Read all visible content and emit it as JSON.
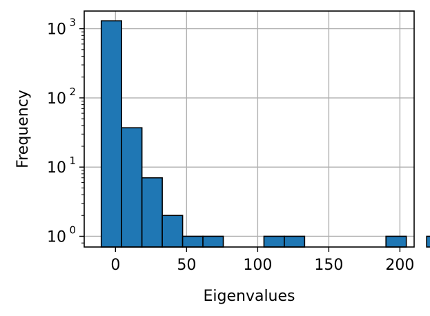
{
  "chart_data": {
    "type": "bar",
    "subtype": "histogram",
    "xlabel": "Eigenvalues",
    "ylabel": "Frequency",
    "y_scale": "log",
    "xlim": [
      -22,
      210
    ],
    "ylim": [
      0.7,
      1800
    ],
    "grid": true,
    "bar_color": "#1f77b4",
    "edge_color": "#000000",
    "grid_color": "#b0b0b0",
    "bin_start": -10,
    "bin_width": 14.3,
    "counts": [
      1300,
      37,
      7,
      2,
      1,
      1,
      0,
      0,
      1,
      1,
      0,
      0,
      0,
      0,
      1,
      0,
      1
    ],
    "x_ticks": [
      {
        "value": 0,
        "label": "0"
      },
      {
        "value": 50,
        "label": "50"
      },
      {
        "value": 100,
        "label": "100"
      },
      {
        "value": 150,
        "label": "150"
      },
      {
        "value": 200,
        "label": "200"
      }
    ],
    "y_ticks": [
      {
        "value": 1,
        "base": "10",
        "exp": "0"
      },
      {
        "value": 10,
        "base": "10",
        "exp": "1"
      },
      {
        "value": 100,
        "base": "10",
        "exp": "2"
      },
      {
        "value": 1000,
        "base": "10",
        "exp": "3"
      }
    ]
  }
}
